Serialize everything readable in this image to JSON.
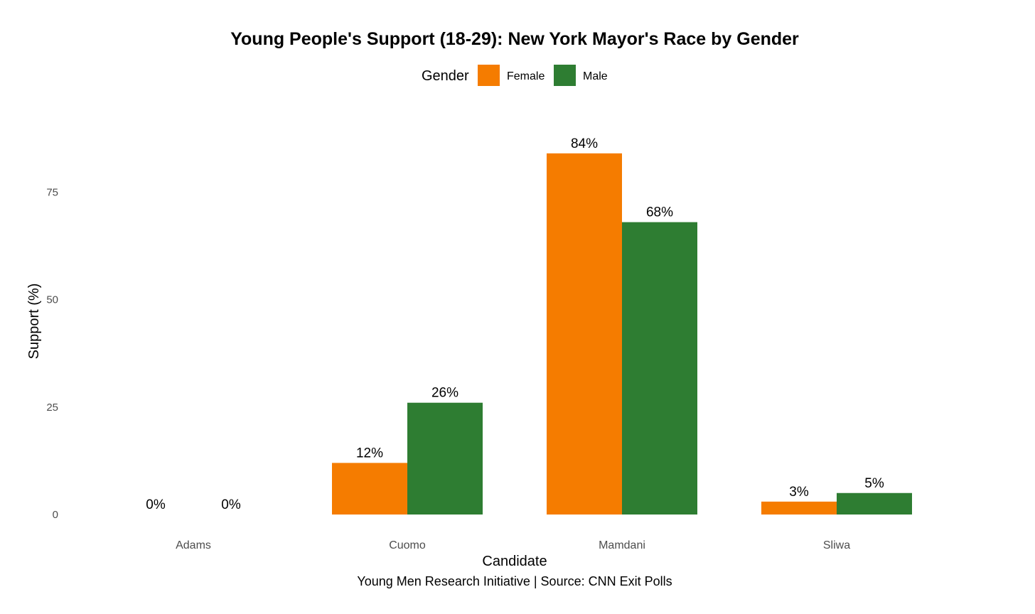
{
  "chart_data": {
    "type": "bar",
    "title": "Young People's Support (18-29): New York Mayor's Race by Gender",
    "xlabel": "Candidate",
    "ylabel": "Support (%)",
    "caption": "Young Men Research Initiative | Source: CNN Exit Polls",
    "categories": [
      "Adams",
      "Cuomo",
      "Mamdani",
      "Sliwa"
    ],
    "series": [
      {
        "name": "Female",
        "color": "#f57c00",
        "values": [
          0,
          12,
          84,
          3
        ],
        "labels": [
          "0%",
          "12%",
          "84%",
          "3%"
        ]
      },
      {
        "name": "Male",
        "color": "#2e7d32",
        "values": [
          0,
          26,
          68,
          5
        ],
        "labels": [
          "0%",
          "26%",
          "68%",
          "5%"
        ]
      }
    ],
    "legend": {
      "title": "Gender",
      "position": "top"
    },
    "y_ticks": [
      0,
      25,
      50,
      75
    ],
    "y_tick_labels": [
      "0",
      "25",
      "50",
      "75"
    ],
    "ylim": [
      0,
      88
    ],
    "grid": false
  }
}
